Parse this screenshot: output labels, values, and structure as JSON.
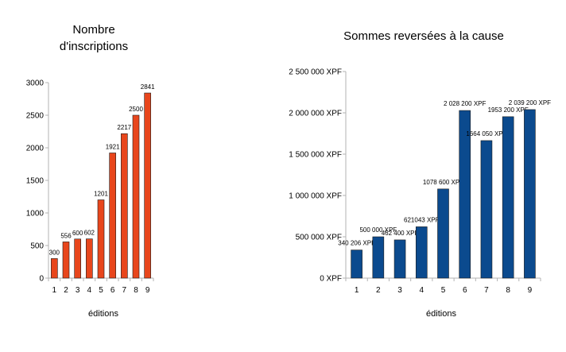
{
  "chart_data": [
    {
      "type": "bar",
      "title_lines": [
        "Nombre",
        "d'inscriptions"
      ],
      "xlabel": "éditions",
      "ylabel": "",
      "categories": [
        "1",
        "2",
        "3",
        "4",
        "5",
        "6",
        "7",
        "8",
        "9"
      ],
      "values": [
        300,
        556,
        600,
        602,
        1201,
        1921,
        2217,
        2500,
        2841
      ],
      "data_labels": [
        "300",
        "556",
        "600",
        "602",
        "1201",
        "1921",
        "2217",
        "2500",
        "2841"
      ],
      "ylim": [
        0,
        3000
      ],
      "yticks": [
        0,
        500,
        1000,
        1500,
        2000,
        2500,
        3000
      ],
      "ytick_labels": [
        "0",
        "500",
        "1000",
        "1500",
        "2000",
        "2500",
        "3000"
      ],
      "color": "#e8461c",
      "grid": false
    },
    {
      "type": "bar",
      "title_lines": [
        "Sommes reversées à la cause"
      ],
      "xlabel": "éditions",
      "ylabel": "",
      "categories": [
        "1",
        "2",
        "3",
        "4",
        "5",
        "6",
        "7",
        "8",
        "9"
      ],
      "values": [
        340206,
        500000,
        462400,
        621043,
        1078600,
        2028200,
        1664050,
        1953200,
        2039200
      ],
      "data_labels": [
        "340 206 XPF",
        "500 000 XPF",
        "462 400 XPF",
        "621043 XPF",
        "1078 600 XPF",
        "2 028 200 XPF",
        "1664 050 XPF",
        "1953 200 XPF",
        "2 039 200 XPF"
      ],
      "ylim": [
        0,
        2500000
      ],
      "yticks": [
        0,
        500000,
        1000000,
        1500000,
        2000000,
        2500000
      ],
      "ytick_labels": [
        "0 XPF",
        "500 000 XPF",
        "1 000 000 XPF",
        "1 500 000 XPF",
        "2 000 000 XPF",
        "2 500 000 XPF"
      ],
      "color": "#0b4a8e",
      "grid": false
    }
  ]
}
